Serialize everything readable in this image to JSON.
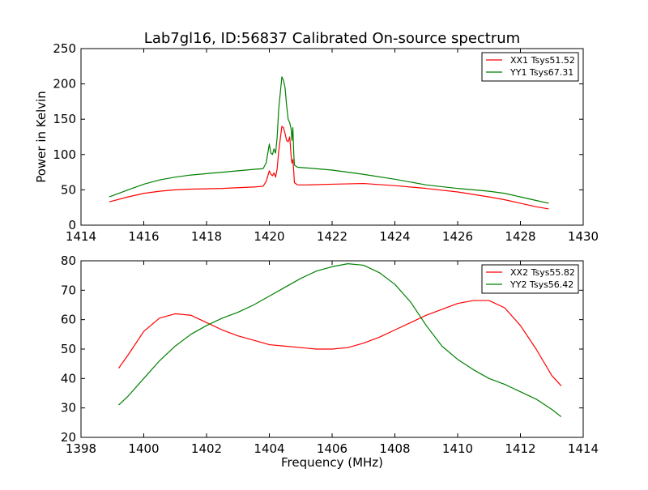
{
  "title": "Lab7gl16, ID:56837 Calibrated On-source spectrum",
  "ylabel": "Power in Kelvin",
  "xlabel": "Frequency (MHz)",
  "chart_data": [
    {
      "type": "line",
      "xlim": [
        1414,
        1430
      ],
      "ylim": [
        0,
        250
      ],
      "xticks": [
        1414,
        1416,
        1418,
        1420,
        1422,
        1424,
        1426,
        1428,
        1430
      ],
      "yticks": [
        0,
        50,
        100,
        150,
        200,
        250
      ],
      "ylabel": "Power in Kelvin",
      "legend_position": "top-right",
      "series": [
        {
          "name": "XX1 Tsys51.52",
          "color": "#ff0000",
          "x": [
            1414.9,
            1415.5,
            1416.0,
            1416.5,
            1417.0,
            1417.5,
            1418.0,
            1418.5,
            1419.0,
            1419.5,
            1419.8,
            1419.9,
            1420.0,
            1420.05,
            1420.1,
            1420.15,
            1420.2,
            1420.25,
            1420.3,
            1420.4,
            1420.45,
            1420.5,
            1420.55,
            1420.6,
            1420.65,
            1420.7,
            1420.72,
            1420.75,
            1420.78,
            1420.8,
            1420.9,
            1421.2,
            1422.0,
            1423.0,
            1424.0,
            1425.0,
            1426.0,
            1427.0,
            1427.5,
            1428.0,
            1428.5,
            1428.9
          ],
          "y": [
            33,
            40,
            45,
            48,
            50,
            51,
            51.5,
            52,
            53,
            54,
            55,
            62,
            77,
            72,
            70,
            74,
            68,
            80,
            105,
            140,
            138,
            130,
            120,
            118,
            125,
            95,
            88,
            93,
            75,
            60,
            57,
            57,
            58,
            59,
            56,
            52,
            47,
            40,
            36,
            31,
            26,
            23
          ]
        },
        {
          "name": "YY1 Tsys67.31",
          "color": "#008000",
          "x": [
            1414.9,
            1415.5,
            1416.0,
            1416.5,
            1417.0,
            1417.5,
            1418.0,
            1418.5,
            1419.0,
            1419.5,
            1419.8,
            1419.9,
            1420.0,
            1420.05,
            1420.1,
            1420.15,
            1420.2,
            1420.25,
            1420.3,
            1420.4,
            1420.45,
            1420.5,
            1420.55,
            1420.6,
            1420.65,
            1420.7,
            1420.72,
            1420.75,
            1420.78,
            1420.8,
            1420.9,
            1421.2,
            1422.0,
            1423.0,
            1424.0,
            1425.0,
            1426.0,
            1427.0,
            1427.5,
            1428.0,
            1428.5,
            1428.9
          ],
          "y": [
            40,
            50,
            58,
            64,
            68,
            71,
            73,
            75,
            77,
            79,
            80,
            88,
            115,
            102,
            100,
            108,
            102,
            125,
            165,
            210,
            205,
            195,
            170,
            150,
            145,
            135,
            120,
            138,
            100,
            85,
            82,
            81,
            78,
            72,
            65,
            57,
            52,
            48,
            45,
            40,
            35,
            31
          ]
        }
      ]
    },
    {
      "type": "line",
      "xlim": [
        1398,
        1414
      ],
      "ylim": [
        20,
        80
      ],
      "xticks": [
        1398,
        1400,
        1402,
        1404,
        1406,
        1408,
        1410,
        1412,
        1414
      ],
      "yticks": [
        20,
        30,
        40,
        50,
        60,
        70,
        80
      ],
      "xlabel": "Frequency (MHz)",
      "legend_position": "top-right",
      "series": [
        {
          "name": "XX2 Tsys55.82",
          "color": "#ff0000",
          "x": [
            1399.2,
            1399.5,
            1400.0,
            1400.5,
            1401.0,
            1401.5,
            1402.0,
            1402.5,
            1403.0,
            1403.5,
            1404.0,
            1404.5,
            1405.0,
            1405.5,
            1406.0,
            1406.5,
            1407.0,
            1407.5,
            1408.0,
            1408.5,
            1409.0,
            1409.5,
            1410.0,
            1410.5,
            1411.0,
            1411.5,
            1412.0,
            1412.5,
            1413.0,
            1413.3
          ],
          "y": [
            43.5,
            48,
            56,
            60.5,
            62,
            61.5,
            59,
            56.5,
            54.5,
            53,
            51.5,
            51,
            50.5,
            50,
            50,
            50.5,
            52,
            54,
            56.5,
            59,
            61.5,
            63.5,
            65.5,
            66.5,
            66.5,
            64,
            58,
            50,
            41,
            37.5
          ]
        },
        {
          "name": "YY2 Tsys56.42",
          "color": "#008000",
          "x": [
            1399.2,
            1399.5,
            1400.0,
            1400.5,
            1401.0,
            1401.5,
            1402.0,
            1402.5,
            1403.0,
            1403.5,
            1404.0,
            1404.5,
            1405.0,
            1405.5,
            1406.0,
            1406.5,
            1407.0,
            1407.5,
            1408.0,
            1408.5,
            1409.0,
            1409.5,
            1410.0,
            1410.5,
            1411.0,
            1411.5,
            1412.0,
            1412.5,
            1413.0,
            1413.3
          ],
          "y": [
            31,
            34,
            40,
            46,
            51,
            55,
            58,
            60.5,
            62.5,
            65,
            68,
            71,
            74,
            76.5,
            78,
            79,
            78.5,
            76,
            72,
            66,
            58,
            51,
            46.5,
            43,
            40,
            38,
            35.5,
            33,
            29.5,
            27
          ]
        }
      ]
    }
  ]
}
